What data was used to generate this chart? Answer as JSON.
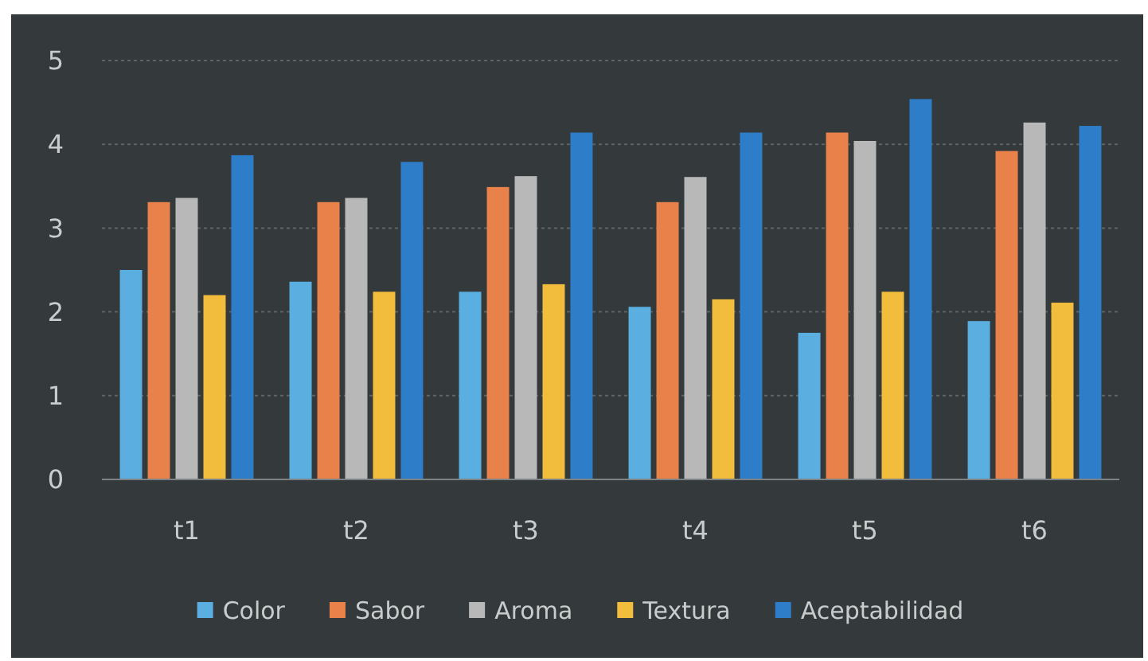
{
  "chart_data": {
    "type": "bar",
    "categories": [
      "t1",
      "t2",
      "t3",
      "t4",
      "t5",
      "t6"
    ],
    "series": [
      {
        "name": "Color",
        "color": "#5aaee0",
        "values": [
          2.5,
          2.36,
          2.24,
          2.06,
          1.75,
          1.89
        ]
      },
      {
        "name": "Sabor",
        "color": "#e8824a",
        "values": [
          3.31,
          3.31,
          3.49,
          3.31,
          4.14,
          3.92
        ]
      },
      {
        "name": "Aroma",
        "color": "#b8b8b8",
        "values": [
          3.36,
          3.36,
          3.62,
          3.61,
          4.04,
          4.26
        ]
      },
      {
        "name": "Textura",
        "color": "#f2bc3c",
        "values": [
          2.2,
          2.24,
          2.33,
          2.15,
          2.24,
          2.11
        ]
      },
      {
        "name": "Aceptabilidad",
        "color": "#2e7dc8",
        "values": [
          3.87,
          3.79,
          4.14,
          4.14,
          4.54,
          4.22
        ]
      }
    ],
    "ylim": [
      0,
      5
    ],
    "yticks": [
      0,
      1,
      2,
      3,
      4,
      5
    ],
    "grid": "y",
    "legend": "bottom"
  }
}
